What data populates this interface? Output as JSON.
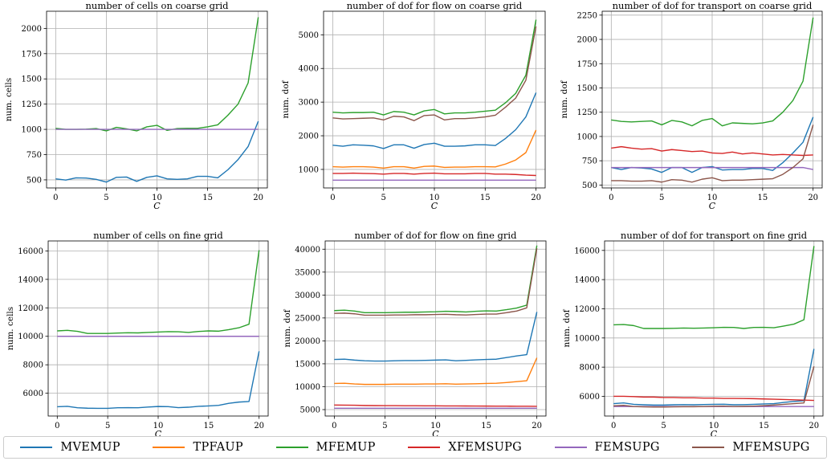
{
  "series_styles": [
    {
      "name": "MVEMUP",
      "color": "#1f77b4"
    },
    {
      "name": "TPFAUP",
      "color": "#ff7f0e"
    },
    {
      "name": "MFEMUP",
      "color": "#2ca02c"
    },
    {
      "name": "XFEMSUPG",
      "color": "#d62728"
    },
    {
      "name": "FEMSUPG",
      "color": "#9467bd"
    },
    {
      "name": "MFEMSUPG",
      "color": "#8c564b"
    }
  ],
  "chart_data": [
    {
      "type": "line",
      "title": "number of cells on coarse grid",
      "xlabel": "C",
      "ylabel": "num. cells",
      "x": [
        0,
        1,
        2,
        3,
        4,
        5,
        6,
        7,
        8,
        9,
        10,
        11,
        12,
        13,
        14,
        15,
        16,
        17,
        18,
        19,
        20
      ],
      "xlim": [
        -0.9,
        20.9
      ],
      "ylim": [
        420,
        2170
      ],
      "yticks": [
        500,
        750,
        1000,
        1250,
        1500,
        1750,
        2000
      ],
      "xticks": [
        0,
        5,
        10,
        15,
        20
      ],
      "series": [
        {
          "name": "MVEMUP",
          "values": [
            510,
            498,
            520,
            518,
            505,
            478,
            525,
            528,
            485,
            525,
            540,
            510,
            505,
            510,
            535,
            535,
            520,
            600,
            700,
            830,
            1080
          ]
        },
        {
          "name": "MFEMUP",
          "values": [
            1010,
            1000,
            1000,
            1002,
            1008,
            985,
            1020,
            1005,
            985,
            1025,
            1040,
            990,
            1008,
            1010,
            1010,
            1025,
            1045,
            1140,
            1250,
            1460,
            2110
          ]
        },
        {
          "name": "FEMSUPG",
          "values": [
            1000,
            1000,
            1000,
            1000,
            1000,
            1000,
            1000,
            1000,
            1000,
            1000,
            1000,
            1000,
            1000,
            1000,
            1000,
            1000,
            1000,
            1000,
            1000,
            1000,
            1000
          ]
        }
      ]
    },
    {
      "type": "line",
      "title": "number of dof for flow on coarse grid",
      "xlabel": "C",
      "ylabel": "num. dof",
      "x": [
        0,
        1,
        2,
        3,
        4,
        5,
        6,
        7,
        8,
        9,
        10,
        11,
        12,
        13,
        14,
        15,
        16,
        17,
        18,
        19,
        20
      ],
      "xlim": [
        -0.9,
        20.9
      ],
      "ylim": [
        450,
        5700
      ],
      "yticks": [
        1000,
        2000,
        3000,
        4000,
        5000
      ],
      "xticks": [
        0,
        5,
        10,
        15,
        20
      ],
      "series": [
        {
          "name": "MVEMUP",
          "values": [
            1720,
            1690,
            1730,
            1720,
            1700,
            1620,
            1730,
            1730,
            1630,
            1740,
            1780,
            1690,
            1690,
            1700,
            1730,
            1730,
            1710,
            1920,
            2180,
            2560,
            3280
          ]
        },
        {
          "name": "TPFAUP",
          "values": [
            1080,
            1070,
            1080,
            1080,
            1070,
            1040,
            1080,
            1080,
            1040,
            1090,
            1100,
            1060,
            1070,
            1070,
            1080,
            1080,
            1075,
            1160,
            1280,
            1500,
            2170
          ]
        },
        {
          "name": "MFEMUP",
          "values": [
            2700,
            2680,
            2690,
            2690,
            2700,
            2620,
            2720,
            2700,
            2620,
            2740,
            2780,
            2650,
            2680,
            2680,
            2700,
            2730,
            2760,
            2980,
            3260,
            3800,
            5450
          ]
        },
        {
          "name": "XFEMSUPG",
          "values": [
            880,
            880,
            890,
            880,
            875,
            860,
            880,
            880,
            860,
            880,
            890,
            870,
            870,
            870,
            880,
            880,
            860,
            860,
            850,
            830,
            820
          ]
        },
        {
          "name": "FEMSUPG",
          "values": [
            680,
            680,
            680,
            680,
            680,
            680,
            680,
            680,
            680,
            680,
            680,
            680,
            680,
            680,
            680,
            680,
            680,
            680,
            680,
            680,
            680
          ]
        },
        {
          "name": "MFEMSUPG",
          "values": [
            2530,
            2500,
            2510,
            2520,
            2530,
            2470,
            2580,
            2560,
            2450,
            2600,
            2620,
            2470,
            2510,
            2510,
            2530,
            2560,
            2610,
            2850,
            3120,
            3650,
            5250
          ]
        }
      ]
    },
    {
      "type": "line",
      "title": "number of dof for transport on coarse grid",
      "xlabel": "C",
      "ylabel": "num. dof",
      "x": [
        0,
        1,
        2,
        3,
        4,
        5,
        6,
        7,
        8,
        9,
        10,
        11,
        12,
        13,
        14,
        15,
        16,
        17,
        18,
        19,
        20
      ],
      "xlim": [
        -0.9,
        20.9
      ],
      "ylim": [
        470,
        2290
      ],
      "yticks": [
        500,
        750,
        1000,
        1250,
        1500,
        1750,
        2000,
        2250
      ],
      "xticks": [
        0,
        5,
        10,
        15,
        20
      ],
      "series": [
        {
          "name": "MVEMUP",
          "values": [
            680,
            660,
            680,
            675,
            665,
            630,
            680,
            680,
            630,
            680,
            690,
            655,
            660,
            660,
            670,
            670,
            650,
            730,
            830,
            940,
            1200
          ]
        },
        {
          "name": "MFEMUP",
          "values": [
            1170,
            1155,
            1150,
            1155,
            1160,
            1120,
            1165,
            1150,
            1110,
            1165,
            1185,
            1110,
            1140,
            1135,
            1130,
            1140,
            1160,
            1250,
            1370,
            1570,
            2225
          ]
        },
        {
          "name": "XFEMSUPG",
          "values": [
            880,
            895,
            880,
            870,
            875,
            850,
            865,
            855,
            845,
            850,
            830,
            825,
            840,
            820,
            830,
            820,
            810,
            815,
            810,
            805,
            810
          ]
        },
        {
          "name": "FEMSUPG",
          "values": [
            680,
            680,
            680,
            680,
            680,
            680,
            680,
            680,
            680,
            680,
            680,
            680,
            680,
            680,
            680,
            680,
            680,
            680,
            680,
            680,
            660
          ]
        },
        {
          "name": "MFEMSUPG",
          "values": [
            545,
            545,
            540,
            540,
            545,
            530,
            555,
            550,
            530,
            560,
            575,
            545,
            550,
            550,
            555,
            560,
            565,
            610,
            680,
            770,
            1120
          ]
        }
      ]
    },
    {
      "type": "line",
      "title": "number of cells on fine grid",
      "xlabel": "C",
      "ylabel": "num. cells",
      "x": [
        0,
        1,
        2,
        3,
        4,
        5,
        6,
        7,
        8,
        9,
        10,
        11,
        12,
        13,
        14,
        15,
        16,
        17,
        18,
        19,
        20
      ],
      "xlim": [
        -0.9,
        20.9
      ],
      "ylim": [
        4400,
        16700
      ],
      "yticks": [
        6000,
        8000,
        10000,
        12000,
        14000,
        16000
      ],
      "xticks": [
        0,
        5,
        10,
        15,
        20
      ],
      "series": [
        {
          "name": "MVEMUP",
          "values": [
            5050,
            5080,
            4980,
            4950,
            4940,
            4940,
            4980,
            4990,
            4980,
            5030,
            5070,
            5060,
            4990,
            5020,
            5080,
            5110,
            5150,
            5290,
            5380,
            5420,
            8950
          ]
        },
        {
          "name": "MFEMUP",
          "values": [
            10380,
            10420,
            10350,
            10200,
            10200,
            10200,
            10230,
            10250,
            10240,
            10270,
            10300,
            10330,
            10320,
            10270,
            10340,
            10380,
            10360,
            10470,
            10600,
            10850,
            16050
          ]
        },
        {
          "name": "FEMSUPG",
          "values": [
            10000,
            10000,
            10000,
            10000,
            10000,
            10000,
            10000,
            10000,
            10000,
            10000,
            10000,
            10000,
            10000,
            10000,
            10000,
            10000,
            10000,
            10000,
            10000,
            10000,
            10000
          ]
        }
      ]
    },
    {
      "type": "line",
      "title": "number of dof for flow on fine grid",
      "xlabel": "C",
      "ylabel": "num. dof",
      "x": [
        0,
        1,
        2,
        3,
        4,
        5,
        6,
        7,
        8,
        9,
        10,
        11,
        12,
        13,
        14,
        15,
        16,
        17,
        18,
        19,
        20
      ],
      "xlim": [
        -0.9,
        20.9
      ],
      "ylim": [
        3600,
        41800
      ],
      "yticks": [
        5000,
        10000,
        15000,
        20000,
        25000,
        30000,
        35000,
        40000
      ],
      "xticks": [
        0,
        5,
        10,
        15,
        20
      ],
      "series": [
        {
          "name": "MVEMUP",
          "values": [
            15950,
            16000,
            15800,
            15650,
            15600,
            15600,
            15650,
            15700,
            15700,
            15750,
            15800,
            15850,
            15650,
            15750,
            15850,
            15950,
            16000,
            16350,
            16700,
            17000,
            26300
          ]
        },
        {
          "name": "TPFAUP",
          "values": [
            10700,
            10750,
            10600,
            10500,
            10500,
            10500,
            10550,
            10550,
            10550,
            10600,
            10600,
            10650,
            10550,
            10600,
            10650,
            10700,
            10750,
            10900,
            11100,
            11300,
            16300
          ]
        },
        {
          "name": "MFEMUP",
          "values": [
            26600,
            26700,
            26500,
            26150,
            26150,
            26150,
            26200,
            26250,
            26250,
            26300,
            26350,
            26450,
            26400,
            26300,
            26450,
            26550,
            26500,
            26800,
            27150,
            27800,
            40800
          ]
        },
        {
          "name": "XFEMSUPG",
          "values": [
            6000,
            5980,
            5950,
            5900,
            5880,
            5870,
            5860,
            5850,
            5840,
            5830,
            5820,
            5810,
            5800,
            5790,
            5780,
            5770,
            5760,
            5750,
            5740,
            5730,
            5720
          ]
        },
        {
          "name": "FEMSUPG",
          "values": [
            5300,
            5300,
            5300,
            5300,
            5300,
            5300,
            5300,
            5300,
            5300,
            5300,
            5300,
            5300,
            5300,
            5300,
            5300,
            5300,
            5300,
            5300,
            5300,
            5300,
            5300
          ]
        },
        {
          "name": "MFEMSUPG",
          "values": [
            26000,
            26050,
            25900,
            25600,
            25600,
            25600,
            25650,
            25650,
            25700,
            25700,
            25750,
            25800,
            25700,
            25650,
            25750,
            25850,
            25850,
            26150,
            26500,
            27200,
            40200
          ]
        }
      ]
    },
    {
      "type": "line",
      "title": "number of dof for transport on fine grid",
      "xlabel": "C",
      "ylabel": "num. dof",
      "x": [
        0,
        1,
        2,
        3,
        4,
        5,
        6,
        7,
        8,
        9,
        10,
        11,
        12,
        13,
        14,
        15,
        16,
        17,
        18,
        19,
        20
      ],
      "xlim": [
        -0.9,
        20.9
      ],
      "ylim": [
        4650,
        16650
      ],
      "yticks": [
        6000,
        8000,
        10000,
        12000,
        14000,
        16000
      ],
      "xticks": [
        0,
        5,
        10,
        15,
        20
      ],
      "series": [
        {
          "name": "MVEMUP",
          "values": [
            5500,
            5550,
            5450,
            5420,
            5400,
            5400,
            5420,
            5430,
            5420,
            5440,
            5450,
            5460,
            5420,
            5430,
            5450,
            5480,
            5500,
            5580,
            5650,
            5700,
            9250
          ]
        },
        {
          "name": "MFEMUP",
          "values": [
            10900,
            10920,
            10850,
            10650,
            10650,
            10650,
            10660,
            10680,
            10670,
            10680,
            10700,
            10730,
            10720,
            10650,
            10720,
            10730,
            10700,
            10820,
            10950,
            11250,
            16300
          ]
        },
        {
          "name": "XFEMSUPG",
          "values": [
            6000,
            6000,
            5980,
            5950,
            5950,
            5920,
            5920,
            5900,
            5900,
            5880,
            5880,
            5860,
            5860,
            5850,
            5840,
            5820,
            5800,
            5780,
            5760,
            5740,
            5720
          ]
        },
        {
          "name": "FEMSUPG",
          "values": [
            5300,
            5300,
            5300,
            5300,
            5300,
            5300,
            5300,
            5300,
            5300,
            5300,
            5300,
            5300,
            5300,
            5300,
            5300,
            5300,
            5300,
            5300,
            5300,
            5300,
            5300
          ]
        },
        {
          "name": "MFEMSUPG",
          "values": [
            5350,
            5380,
            5300,
            5280,
            5270,
            5270,
            5280,
            5290,
            5290,
            5300,
            5320,
            5330,
            5300,
            5310,
            5330,
            5360,
            5400,
            5450,
            5500,
            5550,
            8050
          ]
        }
      ]
    }
  ]
}
